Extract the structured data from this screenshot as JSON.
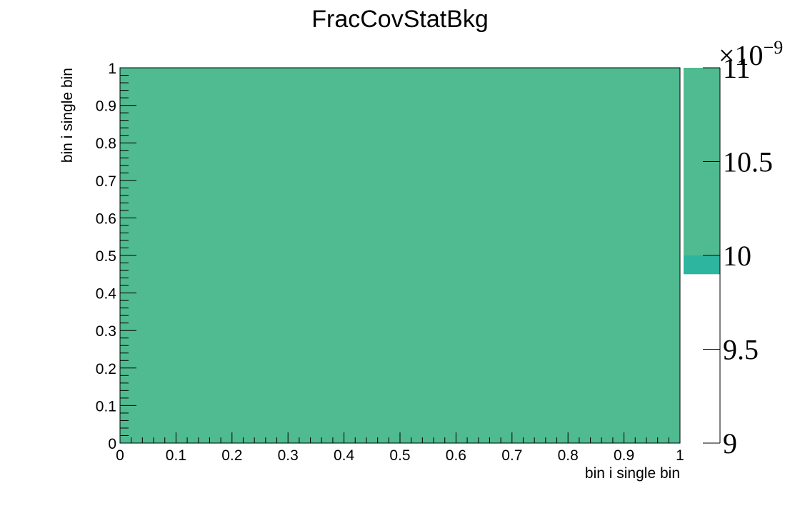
{
  "chart_data": {
    "type": "heatmap",
    "title": "FracCovStatBkg",
    "xlabel": "bin i single bin",
    "ylabel": "bin i single bin",
    "xlim": [
      0,
      1
    ],
    "ylim": [
      0,
      1
    ],
    "x_ticks": [
      "0",
      "0.1",
      "0.2",
      "0.3",
      "0.4",
      "0.5",
      "0.6",
      "0.7",
      "0.8",
      "0.9",
      "1"
    ],
    "y_ticks": [
      "0",
      "0.1",
      "0.2",
      "0.3",
      "0.4",
      "0.5",
      "0.6",
      "0.7",
      "0.8",
      "0.9",
      "1"
    ],
    "cells": [
      {
        "x": [
          0,
          1
        ],
        "y": [
          0,
          1
        ],
        "z": 1.05e-08
      }
    ],
    "zlim": [
      9e-09,
      1.1e-08
    ],
    "z_multiplier": "×10",
    "z_exponent": "−9",
    "z_ticks": [
      "9",
      "9.5",
      "10",
      "10.5",
      "11"
    ],
    "colorbar": [
      {
        "from": 9.9,
        "to": 10.0,
        "color": "#2db5a0"
      },
      {
        "from": 10.0,
        "to": 11.0,
        "color": "#50ba90"
      }
    ],
    "cell_color": "#50ba90",
    "grid": false,
    "legend": "none"
  }
}
